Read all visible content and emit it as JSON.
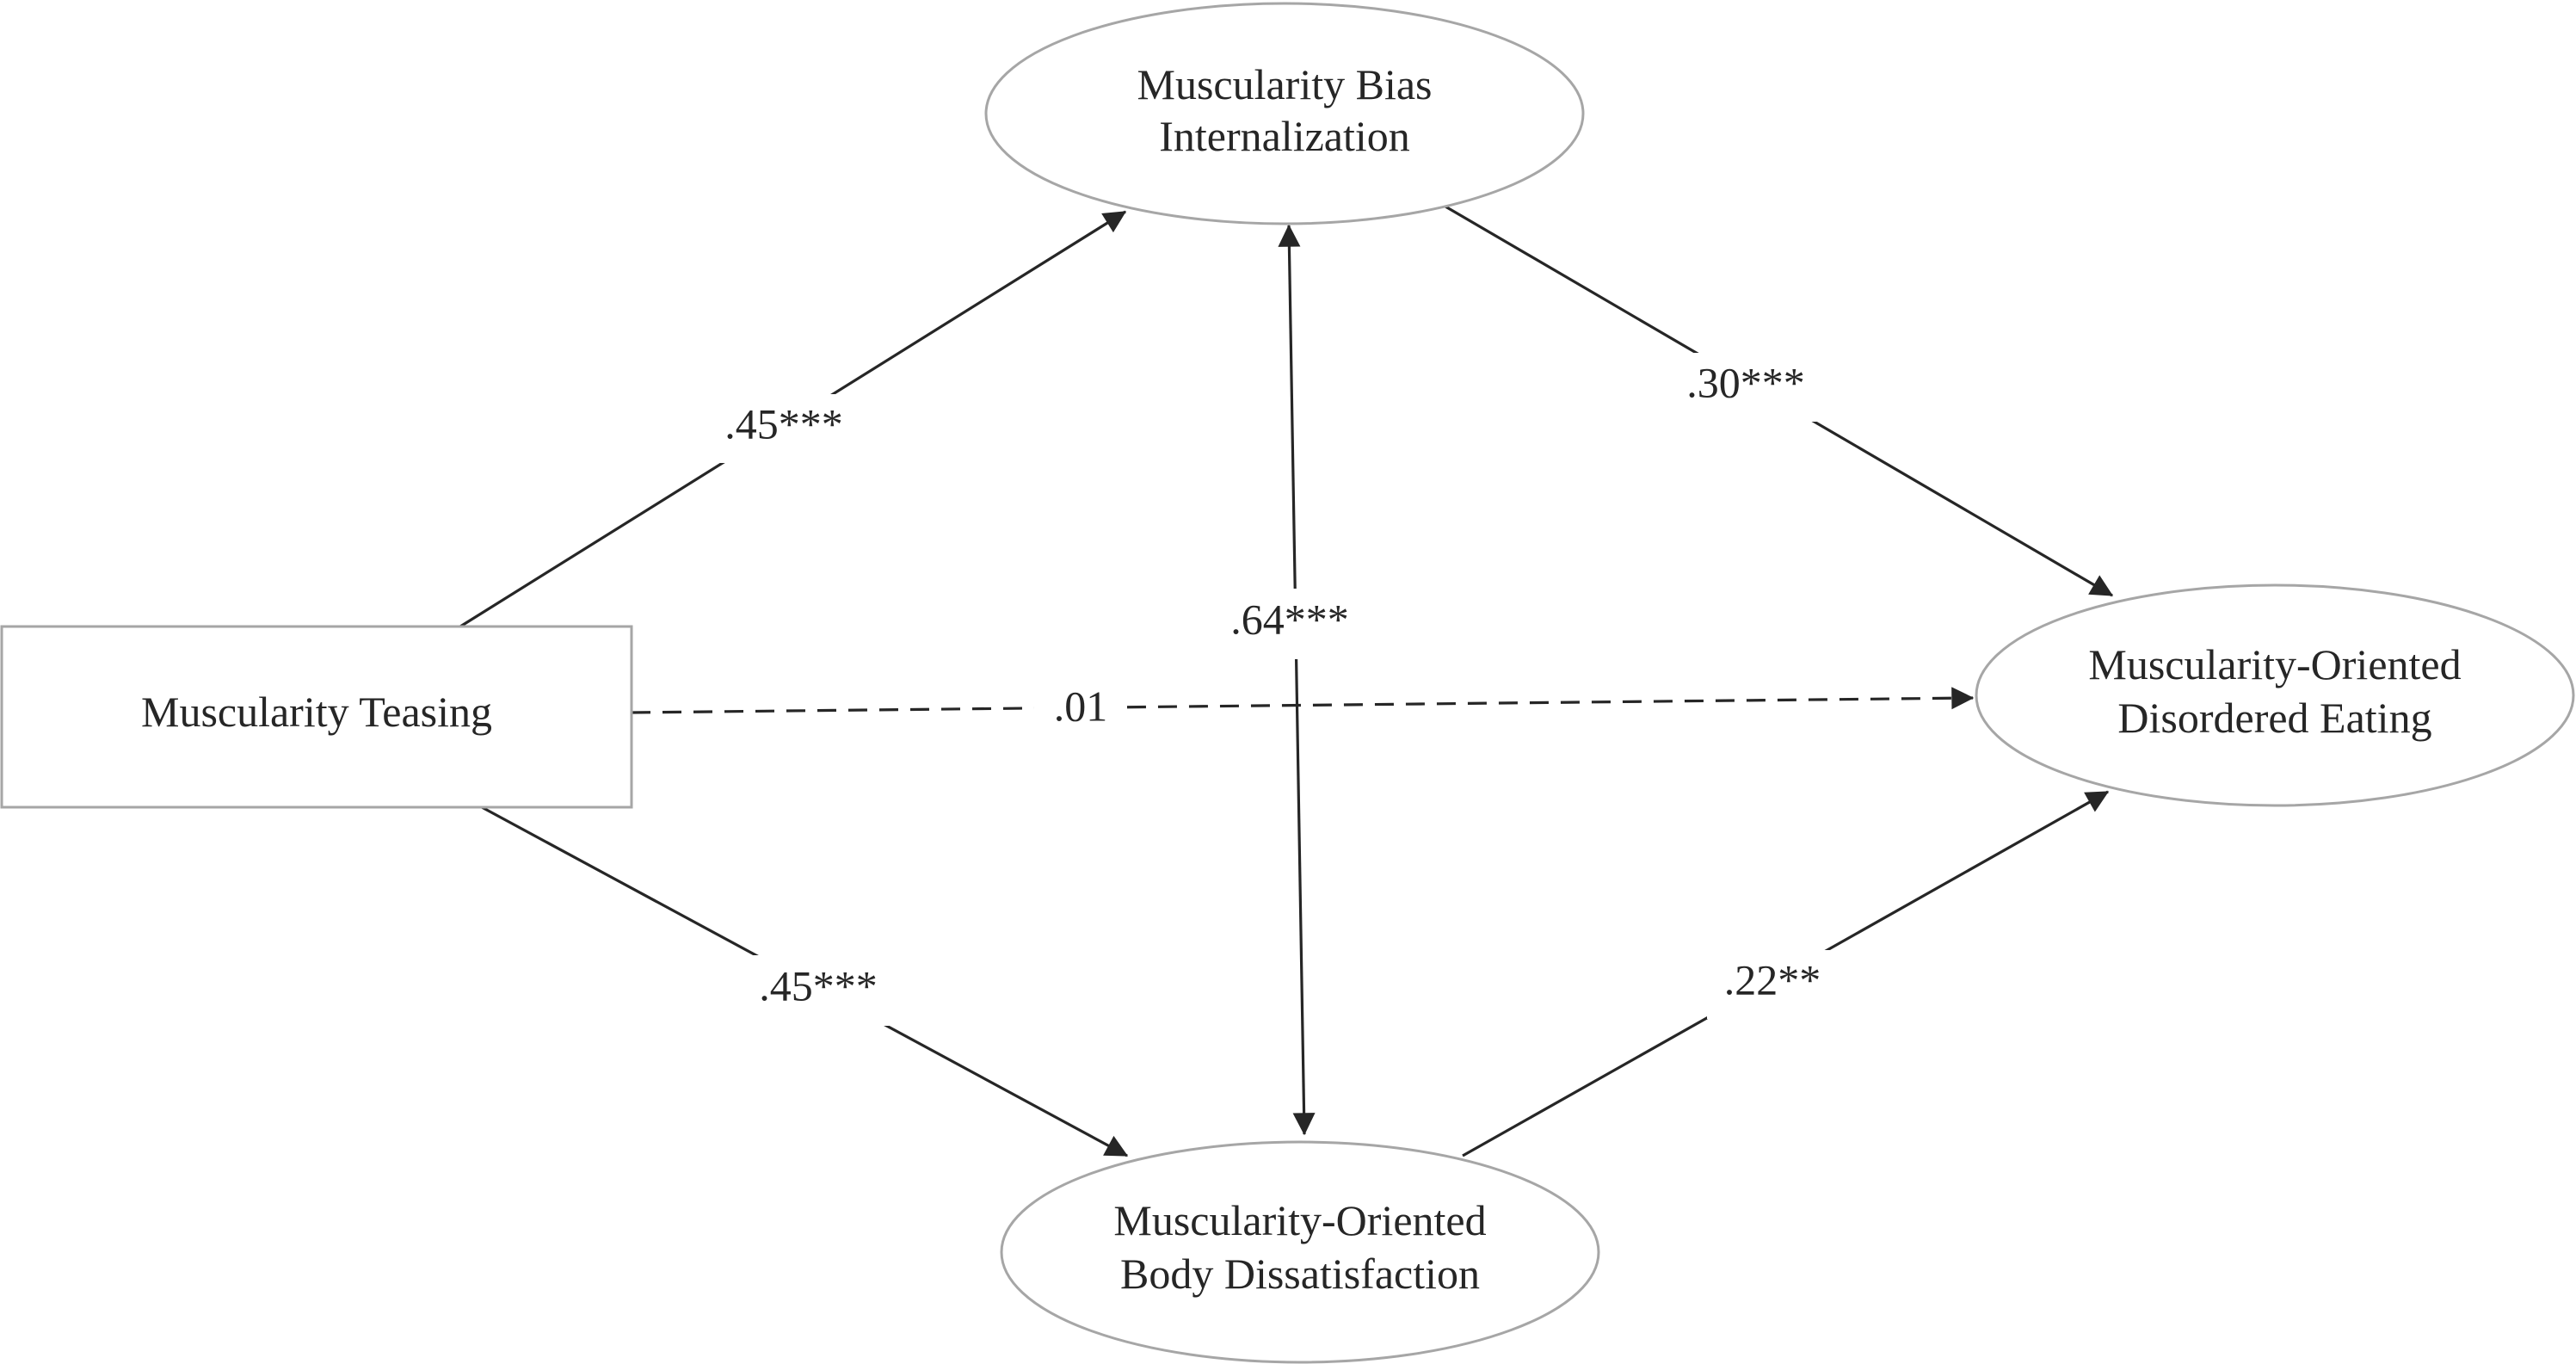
{
  "nodes": {
    "teasing": {
      "lines": [
        "Muscularity Teasing"
      ]
    },
    "internalization": {
      "lines": [
        "Muscularity Bias",
        "Internalization"
      ]
    },
    "body_dissatisfaction": {
      "lines": [
        "Muscularity-Oriented",
        "Body Dissatisfaction"
      ]
    },
    "disordered_eating": {
      "lines": [
        "Muscularity-Oriented",
        "Disordered Eating"
      ]
    }
  },
  "paths": {
    "teasing_to_internalization": {
      "coefficient": ".45***"
    },
    "internalization_to_eating": {
      "coefficient": ".30***"
    },
    "internalization_body_covariance": {
      "coefficient": ".64***"
    },
    "teasing_to_eating": {
      "coefficient": ".01"
    },
    "teasing_to_body": {
      "coefficient": ".45***"
    },
    "body_to_eating": {
      "coefficient": ".22**"
    }
  }
}
